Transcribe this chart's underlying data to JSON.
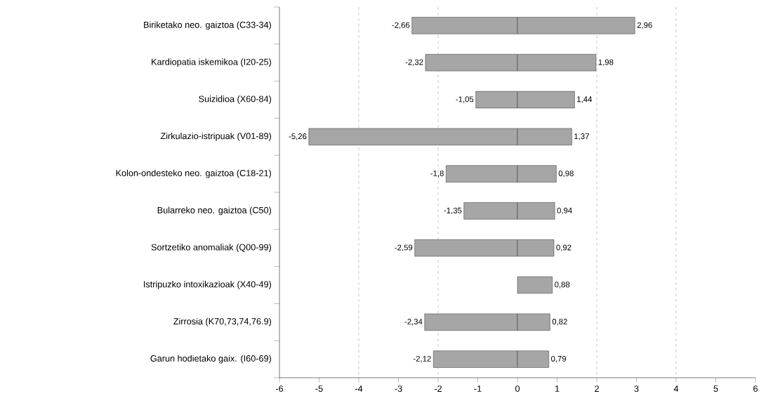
{
  "chart_data": {
    "type": "bar",
    "orientation": "horizontal",
    "stacked": true,
    "categories": [
      "Biriketako neo. gaiztoa (C33-34)",
      "Kardiopatia iskemikoa (I20-25)",
      "Suizidioa (X60-84)",
      "Zirkulazio-istripuak (V01-89)",
      "Kolon-ondesteko neo. gaiztoa (C18-21)",
      "Bularreko neo. gaiztoa (C50)",
      "Sortzetiko anomaliak (Q00-99)",
      "Istripuzko intoxikazioak (X40-49)",
      "Zirrosia (K70,73,74,76.9)",
      "Garun hodietako gaix. (I60-69)"
    ],
    "series": [
      {
        "color": "#a6a6a6",
        "values": [
          -2.66,
          -2.32,
          -1.05,
          -5.26,
          -1.8,
          -1.35,
          -2.59,
          null,
          -2.34,
          -2.12
        ],
        "value_labels": [
          "-2,66",
          "-2,32",
          "-1,05",
          "-5,26",
          "-1,8",
          "-1,35",
          "-2,59",
          null,
          "-2,34",
          "-2,12"
        ]
      },
      {
        "color": "#a6a6a6",
        "values": [
          2.96,
          1.98,
          1.44,
          1.37,
          0.98,
          0.94,
          0.92,
          0.88,
          0.82,
          0.79
        ],
        "value_labels": [
          "2,96",
          "1,98",
          "1,44",
          "1,37",
          "0,98",
          "0,94",
          "0,92",
          "0,88",
          "0,82",
          "0,79"
        ]
      }
    ],
    "xlim": [
      -6,
      6
    ],
    "xticks": [
      -6,
      -5,
      -4,
      -3,
      -2,
      -1,
      0,
      1,
      2,
      3,
      4,
      5,
      6
    ],
    "ref_lines": [
      {
        "axis": "x",
        "value": -4,
        "color": "#999999",
        "line_style": "dashed"
      },
      {
        "axis": "x",
        "value": -2,
        "color": "#999999",
        "line_style": "dashed"
      },
      {
        "axis": "x",
        "value": 2,
        "color": "#999999",
        "line_style": "dashed"
      },
      {
        "axis": "x",
        "value": 4,
        "color": "#999999",
        "line_style": "dashed"
      }
    ]
  }
}
